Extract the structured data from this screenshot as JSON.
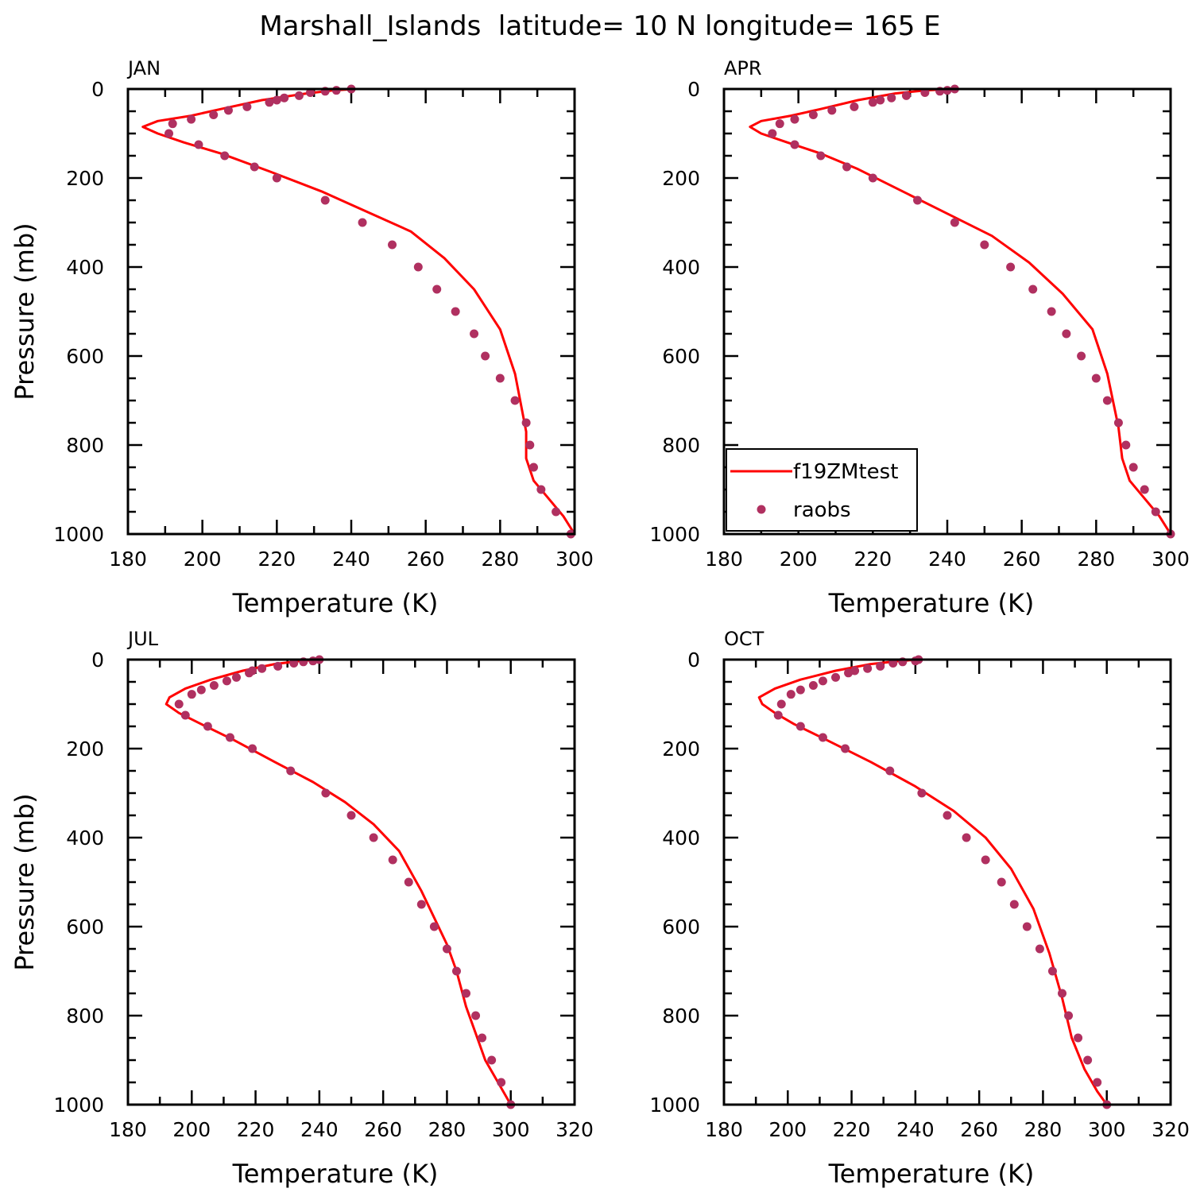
{
  "title": "Marshall_Islands  latitude= 10 N longitude= 165 E",
  "colors": {
    "model": "#ff0000",
    "obs": "#b03060"
  },
  "legend": {
    "model_label": "f19ZMtest",
    "obs_label": "raobs"
  },
  "chart_data": [
    {
      "type": "line",
      "panel": "JAN",
      "xlabel": "Temperature (K)",
      "ylabel": "Pressure (mb)",
      "xlim": [
        180,
        300
      ],
      "ylim": [
        1000,
        0
      ],
      "xticks": [
        180,
        200,
        220,
        240,
        260,
        280,
        300
      ],
      "yticks": [
        0,
        200,
        400,
        600,
        800,
        1000
      ],
      "legend": false,
      "series": [
        {
          "name": "f19ZMtest",
          "kind": "line",
          "x": [
            241,
            235,
            228,
            216,
            205,
            197,
            188,
            184,
            188,
            195,
            205,
            218,
            232,
            244,
            256,
            265,
            273,
            280,
            284,
            287,
            287,
            289,
            293,
            297,
            300
          ],
          "y": [
            0,
            3,
            10,
            25,
            45,
            60,
            72,
            85,
            100,
            120,
            145,
            185,
            230,
            275,
            320,
            380,
            450,
            540,
            640,
            770,
            830,
            880,
            920,
            960,
            1000
          ]
        },
        {
          "name": "raobs",
          "kind": "scatter",
          "x": [
            240,
            236,
            233,
            229,
            226,
            222,
            220,
            218,
            212,
            207,
            203,
            197,
            192,
            191,
            199,
            206,
            214,
            220,
            233,
            243,
            251,
            258,
            263,
            268,
            273,
            276,
            280,
            284,
            287,
            288,
            289,
            291,
            295,
            299
          ],
          "y": [
            0,
            3,
            5,
            8,
            15,
            20,
            25,
            30,
            40,
            48,
            58,
            68,
            78,
            100,
            125,
            150,
            175,
            200,
            250,
            300,
            350,
            400,
            450,
            500,
            550,
            600,
            650,
            700,
            750,
            800,
            850,
            900,
            950,
            1000
          ]
        }
      ]
    },
    {
      "type": "line",
      "panel": "APR",
      "xlabel": "Temperature (K)",
      "ylabel": "",
      "xlim": [
        180,
        300
      ],
      "ylim": [
        1000,
        0
      ],
      "xticks": [
        180,
        200,
        220,
        240,
        260,
        280,
        300
      ],
      "yticks": [
        0,
        200,
        400,
        600,
        800,
        1000
      ],
      "legend": true,
      "series": [
        {
          "name": "f19ZMtest",
          "kind": "line",
          "x": [
            241,
            234,
            226,
            216,
            206,
            198,
            190,
            187,
            190,
            197,
            206,
            216,
            228,
            240,
            252,
            262,
            271,
            279,
            283,
            286,
            287,
            289,
            293,
            297,
            300
          ],
          "y": [
            0,
            3,
            10,
            25,
            45,
            60,
            72,
            85,
            100,
            120,
            145,
            180,
            230,
            280,
            330,
            390,
            460,
            540,
            640,
            760,
            830,
            880,
            920,
            960,
            1000
          ]
        },
        {
          "name": "raobs",
          "kind": "scatter",
          "x": [
            242,
            240,
            238,
            234,
            229,
            225,
            222,
            220,
            215,
            209,
            204,
            199,
            195,
            193,
            199,
            206,
            213,
            220,
            232,
            242,
            250,
            257,
            263,
            268,
            272,
            276,
            280,
            283,
            286,
            288,
            290,
            293,
            296,
            300
          ],
          "y": [
            0,
            3,
            5,
            8,
            15,
            20,
            25,
            30,
            40,
            48,
            58,
            68,
            78,
            100,
            125,
            150,
            175,
            200,
            250,
            300,
            350,
            400,
            450,
            500,
            550,
            600,
            650,
            700,
            750,
            800,
            850,
            900,
            950,
            1000
          ]
        }
      ]
    },
    {
      "type": "line",
      "panel": "JUL",
      "xlabel": "Temperature (K)",
      "ylabel": "Pressure (mb)",
      "xlim": [
        180,
        320
      ],
      "ylim": [
        1000,
        0
      ],
      "xticks": [
        180,
        200,
        220,
        240,
        260,
        280,
        300,
        320
      ],
      "yticks": [
        0,
        200,
        400,
        600,
        800,
        1000
      ],
      "legend": false,
      "series": [
        {
          "name": "f19ZMtest",
          "kind": "line",
          "x": [
            240,
            234,
            226,
            216,
            206,
            198,
            193,
            192,
            196,
            203,
            213,
            226,
            238,
            248,
            257,
            265,
            272,
            280,
            283,
            286,
            289,
            292,
            296,
            300
          ],
          "y": [
            0,
            3,
            10,
            25,
            45,
            65,
            85,
            100,
            120,
            145,
            180,
            230,
            275,
            320,
            370,
            430,
            520,
            640,
            700,
            780,
            840,
            900,
            950,
            1000
          ]
        },
        {
          "name": "raobs",
          "kind": "scatter",
          "x": [
            240,
            238,
            235,
            232,
            227,
            222,
            219,
            218,
            214,
            211,
            207,
            203,
            200,
            196,
            198,
            205,
            212,
            219,
            231,
            242,
            250,
            257,
            263,
            268,
            272,
            276,
            280,
            283,
            286,
            289,
            291,
            294,
            297,
            300
          ],
          "y": [
            0,
            3,
            5,
            8,
            15,
            20,
            25,
            30,
            40,
            48,
            58,
            68,
            78,
            100,
            125,
            150,
            175,
            200,
            250,
            300,
            350,
            400,
            450,
            500,
            550,
            600,
            650,
            700,
            750,
            800,
            850,
            900,
            950,
            1000
          ]
        }
      ]
    },
    {
      "type": "line",
      "panel": "OCT",
      "xlabel": "Temperature (K)",
      "ylabel": "",
      "xlim": [
        180,
        320
      ],
      "ylim": [
        1000,
        0
      ],
      "xticks": [
        180,
        200,
        220,
        240,
        260,
        280,
        300,
        320
      ],
      "yticks": [
        0,
        200,
        400,
        600,
        800,
        1000
      ],
      "legend": false,
      "series": [
        {
          "name": "f19ZMtest",
          "kind": "line",
          "x": [
            241,
            235,
            226,
            215,
            204,
            196,
            191,
            192,
            196,
            202,
            212,
            226,
            240,
            252,
            262,
            270,
            277,
            282,
            286,
            289,
            293,
            297,
            300
          ],
          "y": [
            0,
            3,
            10,
            25,
            45,
            65,
            85,
            100,
            120,
            145,
            180,
            230,
            285,
            340,
            400,
            470,
            560,
            660,
            760,
            850,
            920,
            970,
            1000
          ]
        },
        {
          "name": "raobs",
          "kind": "scatter",
          "x": [
            241,
            240,
            236,
            233,
            229,
            225,
            221,
            219,
            215,
            211,
            208,
            204,
            201,
            198,
            197,
            204,
            211,
            218,
            232,
            242,
            250,
            256,
            262,
            267,
            271,
            275,
            279,
            283,
            286,
            288,
            291,
            294,
            297,
            300
          ],
          "y": [
            0,
            3,
            5,
            8,
            15,
            20,
            25,
            30,
            40,
            48,
            58,
            68,
            78,
            100,
            125,
            150,
            175,
            200,
            250,
            300,
            350,
            400,
            450,
            500,
            550,
            600,
            650,
            700,
            750,
            800,
            850,
            900,
            950,
            1000
          ]
        }
      ]
    }
  ]
}
